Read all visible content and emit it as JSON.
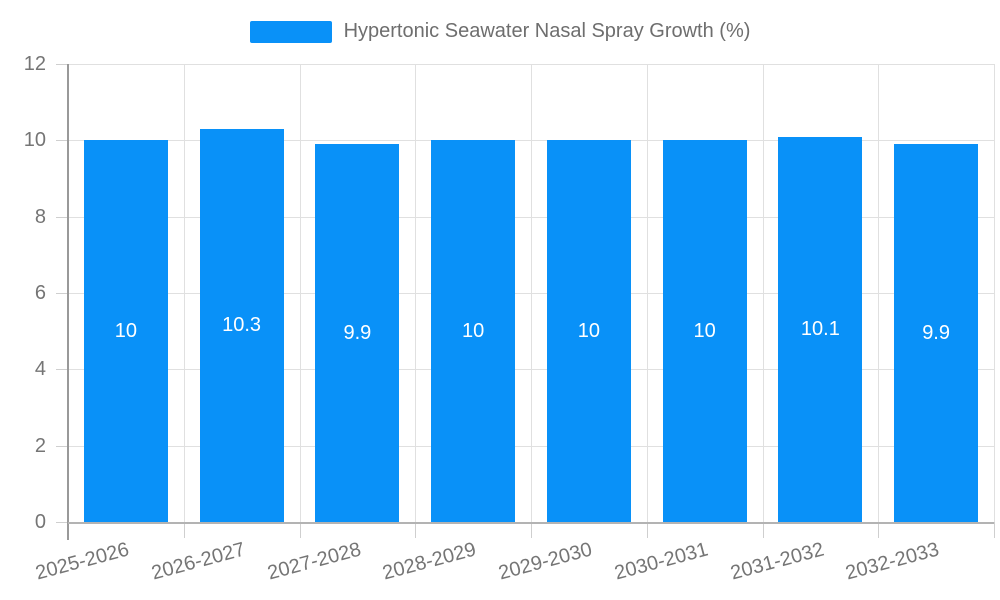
{
  "legend": {
    "label": "Hypertonic Seawater Nasal Spray Growth (%)"
  },
  "chart_data": {
    "type": "bar",
    "title": "Hypertonic Seawater Nasal Spray Growth (%)",
    "categories": [
      "2025-2026",
      "2026-2027",
      "2027-2028",
      "2028-2029",
      "2029-2030",
      "2030-2031",
      "2031-2032",
      "2032-2033"
    ],
    "values": [
      10,
      10.3,
      9.9,
      10,
      10,
      10,
      10.1,
      9.9
    ],
    "value_labels": [
      "10",
      "10.3",
      "9.9",
      "10",
      "10",
      "10",
      "10.1",
      "9.9"
    ],
    "xlabel": "",
    "ylabel": "",
    "ylim": [
      0,
      12
    ],
    "yticks": [
      0,
      2,
      4,
      6,
      8,
      10,
      12
    ],
    "grid": true,
    "legend_position": "top-center",
    "x_label_rotation_deg": -15,
    "colors": {
      "bar": "#0991F8",
      "value_label": "#FFFFFF",
      "gridline": "#E0E0E0",
      "tick": "#CFCFCF",
      "axis_x": "#B3B3B3",
      "axis_y": "#999999",
      "tick_label": "#757575",
      "legend_text": "#6E6E6E"
    }
  }
}
